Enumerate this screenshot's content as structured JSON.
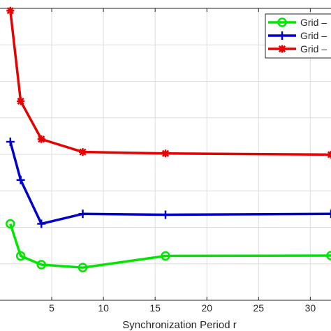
{
  "chart_data": {
    "type": "line",
    "xlabel": "Synchronization Period r",
    "ylabel": "",
    "xlim": [
      0,
      32
    ],
    "ylim": [
      0,
      1
    ],
    "x_ticks": [
      5,
      10,
      15,
      20,
      25,
      30
    ],
    "x_tick_labels": [
      "5",
      "10",
      "15",
      "20",
      "25",
      "30"
    ],
    "grid": true,
    "legend_placement": "top-right",
    "series": [
      {
        "name": "Grid –",
        "color": "#00e600",
        "marker": "circle",
        "x": [
          1,
          2,
          4,
          8,
          16,
          32
        ],
        "y": [
          0.262,
          0.152,
          0.122,
          0.112,
          0.152,
          0.153
        ]
      },
      {
        "name": "Grid –",
        "color": "#0000cc",
        "marker": "plus",
        "x": [
          1,
          2,
          4,
          8,
          16,
          32
        ],
        "y": [
          0.543,
          0.412,
          0.262,
          0.296,
          0.293,
          0.296
        ]
      },
      {
        "name": "Grid –",
        "color": "#e60000",
        "marker": "asterisk",
        "x": [
          1,
          2,
          4,
          8,
          16,
          32
        ],
        "y": [
          0.992,
          0.682,
          0.552,
          0.508,
          0.503,
          0.499
        ]
      }
    ]
  }
}
